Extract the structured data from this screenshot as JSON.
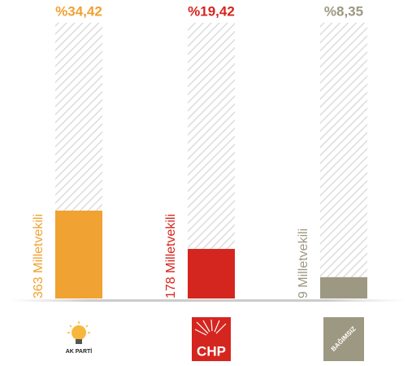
{
  "chart_data": {
    "type": "bar",
    "categories": [
      "AK PARTİ",
      "CHP",
      "BAĞIMSIZ"
    ],
    "values": [
      34.42,
      19.42,
      8.35
    ],
    "value_labels": [
      "%34,42",
      "%19,42",
      "%8,35"
    ],
    "seat_labels": [
      "363 Milletvekili",
      "178 Milletvekili",
      "9 Milletvekili"
    ],
    "colors": [
      "#f0a232",
      "#d5251f",
      "#9d9882"
    ],
    "ylim": [
      0,
      108
    ]
  }
}
